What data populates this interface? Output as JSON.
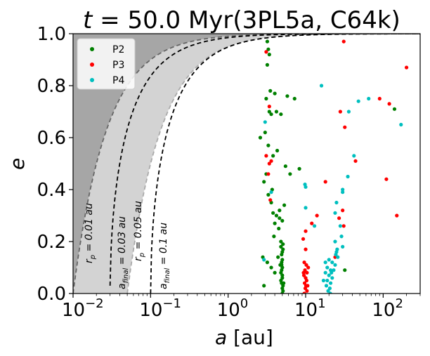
{
  "chart_data": {
    "type": "scatter",
    "title_t": "t",
    "title_rest": " = 50.0 Myr(3PL5a, C64k)",
    "xlabel_var": "a",
    "xlabel_unit": " [au]",
    "ylabel": "e",
    "xscale": "log",
    "xlim": [
      0.01,
      300
    ],
    "ylim": [
      0.0,
      1.0
    ],
    "x_ticks": [
      {
        "base": "10",
        "exp": "−2"
      },
      {
        "base": "10",
        "exp": "−1"
      },
      {
        "base": "10",
        "exp": "0"
      },
      {
        "base": "10",
        "exp": "1"
      },
      {
        "base": "10",
        "exp": "2"
      }
    ],
    "y_ticks": [
      "0.0",
      "0.2",
      "0.4",
      "0.6",
      "0.8",
      "1.0"
    ],
    "legend": [
      {
        "label": "P2",
        "color": "#008000"
      },
      {
        "label": "P3",
        "color": "#ff0000"
      },
      {
        "label": "P4",
        "color": "#00bfbf"
      }
    ],
    "curves": [
      {
        "label": "rp = 0.01 au",
        "rp": 0.01,
        "style": "dashed",
        "color": "#666666"
      },
      {
        "label": "a_final = 0.03 au",
        "rp": 0.015,
        "style": "dashed",
        "color": "#000000"
      },
      {
        "label": "rp = 0.05 au",
        "rp": 0.05,
        "style": "dashed",
        "color": "#aaaaaa"
      },
      {
        "label": "a_final = 0.1 au",
        "rp": 0.05,
        "style": "dashed",
        "color": "#000000"
      }
    ],
    "annotations": [
      {
        "text": "rp = 0.01 au"
      },
      {
        "text": "afinal = 0.03 au"
      },
      {
        "text": "rp = 0.05 au"
      },
      {
        "text": "afinal = 0.1 au"
      }
    ],
    "series": [
      {
        "name": "P2",
        "color": "#008000",
        "points": [
          [
            3.2,
            0.97
          ],
          [
            3.3,
            0.94
          ],
          [
            3.4,
            0.92
          ],
          [
            3.2,
            0.88
          ],
          [
            3.5,
            0.78
          ],
          [
            3.1,
            0.75
          ],
          [
            3.4,
            0.7
          ],
          [
            3.6,
            0.69
          ],
          [
            4.2,
            0.7
          ],
          [
            4.0,
            0.77
          ],
          [
            4.8,
            0.69
          ],
          [
            5.8,
            0.76
          ],
          [
            7.2,
            0.75
          ],
          [
            3.0,
            0.62
          ],
          [
            2.6,
            0.6
          ],
          [
            3.3,
            0.57
          ],
          [
            4.3,
            0.55
          ],
          [
            3.8,
            0.53
          ],
          [
            3.1,
            0.46
          ],
          [
            2.9,
            0.43
          ],
          [
            3.7,
            0.4
          ],
          [
            5.5,
            0.49
          ],
          [
            8.3,
            0.48
          ],
          [
            6.3,
            0.46
          ],
          [
            3.3,
            0.38
          ],
          [
            3.6,
            0.35
          ],
          [
            3.8,
            0.31
          ],
          [
            4.2,
            0.3
          ],
          [
            4.6,
            0.29
          ],
          [
            5.0,
            0.28
          ],
          [
            4.0,
            0.27
          ],
          [
            4.5,
            0.25
          ],
          [
            3.9,
            0.22
          ],
          [
            5.3,
            0.34
          ],
          [
            4.6,
            0.32
          ],
          [
            2.8,
            0.14
          ],
          [
            3.2,
            0.12
          ],
          [
            2.9,
            0.03
          ],
          [
            4.0,
            0.08
          ],
          [
            3.6,
            0.1
          ],
          [
            4.4,
            0.14
          ],
          [
            4.8,
            0.18
          ],
          [
            4.9,
            0.15
          ],
          [
            4.9,
            0.12
          ],
          [
            5.0,
            0.1
          ],
          [
            4.8,
            0.08
          ],
          [
            5.0,
            0.06
          ],
          [
            4.9,
            0.04
          ],
          [
            5.0,
            0.02
          ],
          [
            5.1,
            0.01
          ],
          [
            4.9,
            0.11
          ],
          [
            5.0,
            0.13
          ],
          [
            5.1,
            0.19
          ],
          [
            4.8,
            0.05
          ],
          [
            5.0,
            0.07
          ],
          [
            5.1,
            0.03
          ],
          [
            4.9,
            0.09
          ],
          [
            5.0,
            0.16
          ],
          [
            5.1,
            0.17
          ],
          [
            4.8,
            0.2
          ],
          [
            5.2,
            0.04
          ],
          [
            5.0,
            0.0
          ],
          [
            4.7,
            0.11
          ],
          [
            32.0,
            0.09
          ],
          [
            140,
            0.71
          ]
        ]
      },
      {
        "name": "P3",
        "color": "#ff0000",
        "points": [
          [
            31,
            0.97
          ],
          [
            200,
            0.87
          ],
          [
            3.1,
            0.93
          ],
          [
            3.4,
            0.72
          ],
          [
            28,
            0.7
          ],
          [
            32,
            0.64
          ],
          [
            90,
            0.75
          ],
          [
            120,
            0.73
          ],
          [
            3.1,
            0.53
          ],
          [
            3.4,
            0.5
          ],
          [
            3.6,
            0.51
          ],
          [
            44,
            0.51
          ],
          [
            18,
            0.43
          ],
          [
            110,
            0.44
          ],
          [
            3.3,
            0.46
          ],
          [
            3.5,
            0.36
          ],
          [
            14,
            0.3
          ],
          [
            12,
            0.27
          ],
          [
            10,
            0.24
          ],
          [
            10,
            0.17
          ],
          [
            31,
            0.26
          ],
          [
            30,
            0.32
          ],
          [
            27,
            0.29
          ],
          [
            150,
            0.3
          ],
          [
            9.3,
            0.21
          ],
          [
            9.6,
            0.12
          ],
          [
            10.2,
            0.11
          ],
          [
            9.8,
            0.09
          ],
          [
            10.4,
            0.08
          ],
          [
            9.5,
            0.07
          ],
          [
            10.0,
            0.06
          ],
          [
            10.3,
            0.05
          ],
          [
            9.7,
            0.04
          ],
          [
            10.1,
            0.03
          ],
          [
            9.9,
            0.02
          ],
          [
            10.4,
            0.01
          ],
          [
            9.6,
            0.0
          ],
          [
            10.8,
            0.1
          ],
          [
            9.4,
            0.08
          ],
          [
            10.6,
            0.03
          ],
          [
            24,
            0.14
          ]
        ]
      },
      {
        "name": "P4",
        "color": "#00bfbf",
        "points": [
          [
            16,
            0.8
          ],
          [
            36,
            0.7
          ],
          [
            48,
            0.74
          ],
          [
            65,
            0.75
          ],
          [
            170,
            0.65
          ],
          [
            3.0,
            0.66
          ],
          [
            9.8,
            0.42
          ],
          [
            10.0,
            0.41
          ],
          [
            42,
            0.53
          ],
          [
            35,
            0.45
          ],
          [
            30,
            0.39
          ],
          [
            30,
            0.4
          ],
          [
            3.6,
            0.39
          ],
          [
            10.0,
            0.33
          ],
          [
            13,
            0.26
          ],
          [
            24,
            0.31
          ],
          [
            25,
            0.35
          ],
          [
            28,
            0.26
          ],
          [
            29,
            0.22
          ],
          [
            30,
            0.18
          ],
          [
            24,
            0.2
          ],
          [
            25,
            0.16
          ],
          [
            26,
            0.14
          ],
          [
            20,
            0.13
          ],
          [
            22,
            0.12
          ],
          [
            19,
            0.1
          ],
          [
            21,
            0.09
          ],
          [
            18,
            0.08
          ],
          [
            20,
            0.07
          ],
          [
            22,
            0.06
          ],
          [
            19,
            0.05
          ],
          [
            21,
            0.04
          ],
          [
            18.5,
            0.03
          ],
          [
            20.5,
            0.02
          ],
          [
            19.5,
            0.01
          ],
          [
            20.8,
            0.0
          ],
          [
            17,
            0.05
          ],
          [
            23,
            0.09
          ],
          [
            24,
            0.11
          ],
          [
            18,
            0.12
          ],
          [
            2.9,
            0.13
          ],
          [
            24.5,
            0.15
          ],
          [
            25.5,
            0.17
          ],
          [
            21.5,
            0.08
          ]
        ]
      }
    ]
  }
}
